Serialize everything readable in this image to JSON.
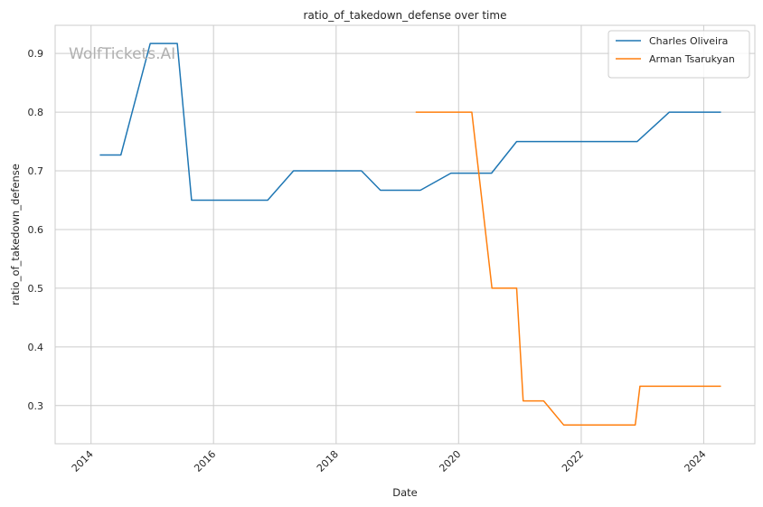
{
  "chart_data": {
    "type": "line",
    "title": "ratio_of_takedown_defense over time",
    "xlabel": "Date",
    "ylabel": "ratio_of_takedown_defense",
    "watermark": "WolfTickets.AI",
    "xlim": [
      "2013-06-01",
      "2024-11-01"
    ],
    "ylim": [
      0.235,
      0.948
    ],
    "x_ticks": [
      "2014-01-01",
      "2016-01-01",
      "2018-01-01",
      "2020-01-01",
      "2022-01-01",
      "2024-01-01"
    ],
    "x_tick_labels": [
      "2014",
      "2016",
      "2018",
      "2020",
      "2022",
      "2024"
    ],
    "y_ticks": [
      0.3,
      0.4,
      0.5,
      0.6,
      0.7,
      0.8,
      0.9
    ],
    "y_tick_labels": [
      "0.3",
      "0.4",
      "0.5",
      "0.6",
      "0.7",
      "0.8",
      "0.9"
    ],
    "grid": true,
    "legend_position": "top-right",
    "series": [
      {
        "name": "Charles Oliveira",
        "color": "#1f77b4",
        "points": [
          {
            "x": "2014-02-22",
            "y": 0.727
          },
          {
            "x": "2014-06-28",
            "y": 0.727
          },
          {
            "x": "2014-12-20",
            "y": 0.917
          },
          {
            "x": "2015-05-30",
            "y": 0.917
          },
          {
            "x": "2015-08-23",
            "y": 0.65
          },
          {
            "x": "2016-11-19",
            "y": 0.65
          },
          {
            "x": "2017-04-22",
            "y": 0.7
          },
          {
            "x": "2018-06-01",
            "y": 0.7
          },
          {
            "x": "2018-09-22",
            "y": 0.667
          },
          {
            "x": "2019-05-18",
            "y": 0.667
          },
          {
            "x": "2019-11-16",
            "y": 0.696
          },
          {
            "x": "2020-07-15",
            "y": 0.696
          },
          {
            "x": "2020-12-12",
            "y": 0.75
          },
          {
            "x": "2022-12-01",
            "y": 0.75
          },
          {
            "x": "2023-06-10",
            "y": 0.8
          },
          {
            "x": "2024-04-13",
            "y": 0.8
          }
        ]
      },
      {
        "name": "Arman Tsarukyan",
        "color": "#ff7f0e",
        "points": [
          {
            "x": "2019-04-20",
            "y": 0.8
          },
          {
            "x": "2020-03-20",
            "y": 0.8
          },
          {
            "x": "2020-07-18",
            "y": 0.5
          },
          {
            "x": "2020-12-12",
            "y": 0.5
          },
          {
            "x": "2021-01-20",
            "y": 0.308
          },
          {
            "x": "2021-05-22",
            "y": 0.308
          },
          {
            "x": "2021-09-18",
            "y": 0.267
          },
          {
            "x": "2022-11-19",
            "y": 0.267
          },
          {
            "x": "2022-12-17",
            "y": 0.333
          },
          {
            "x": "2024-04-13",
            "y": 0.333
          }
        ]
      }
    ]
  }
}
